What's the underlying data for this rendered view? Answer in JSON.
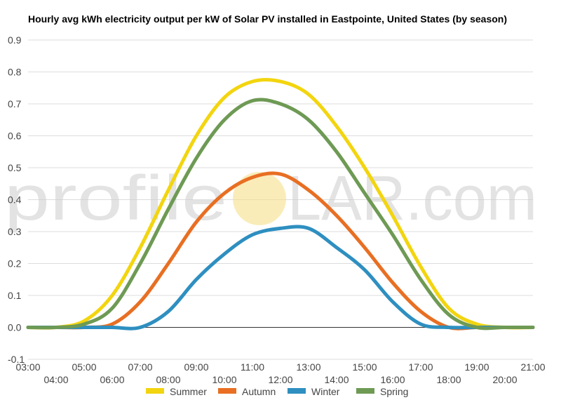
{
  "chart_data": {
    "type": "line",
    "title": "Hourly avg kWh electricity output per kW of Solar PV installed in Eastpointe, United States (by season)",
    "xlabel": "",
    "ylabel": "",
    "ylim": [
      -0.1,
      0.9
    ],
    "yticks": [
      "-0.1",
      "0.0",
      "0.1",
      "0.2",
      "0.3",
      "0.4",
      "0.5",
      "0.6",
      "0.7",
      "0.8",
      "0.9"
    ],
    "xlim": [
      3,
      21
    ],
    "x_tick_labels": [
      "03:00",
      "04:00",
      "05:00",
      "06:00",
      "07:00",
      "08:00",
      "09:00",
      "10:00",
      "11:00",
      "12:00",
      "13:00",
      "14:00",
      "15:00",
      "16:00",
      "17:00",
      "18:00",
      "19:00",
      "20:00",
      "21:00"
    ],
    "grid": true,
    "legend_position": "bottom",
    "x": [
      3,
      4,
      5,
      6,
      7,
      8,
      9,
      10,
      11,
      12,
      13,
      14,
      15,
      16,
      17,
      18,
      19,
      20,
      21
    ],
    "series": [
      {
        "name": "Summer",
        "color": "#f2d50f",
        "values": [
          0.0,
          0.0,
          0.02,
          0.1,
          0.25,
          0.43,
          0.6,
          0.72,
          0.77,
          0.77,
          0.73,
          0.63,
          0.5,
          0.35,
          0.19,
          0.06,
          0.01,
          0.0,
          0.0
        ]
      },
      {
        "name": "Autumn",
        "color": "#e86f23",
        "values": [
          0.0,
          0.0,
          0.0,
          0.01,
          0.08,
          0.2,
          0.33,
          0.42,
          0.47,
          0.48,
          0.43,
          0.35,
          0.25,
          0.14,
          0.05,
          0.0,
          0.0,
          0.0,
          0.0
        ]
      },
      {
        "name": "Winter",
        "color": "#2e8fc0",
        "values": [
          0.0,
          0.0,
          0.0,
          0.0,
          0.0,
          0.05,
          0.15,
          0.23,
          0.29,
          0.31,
          0.31,
          0.25,
          0.18,
          0.08,
          0.01,
          0.0,
          0.0,
          0.0,
          0.0
        ]
      },
      {
        "name": "Spring",
        "color": "#6e9a54",
        "values": [
          0.0,
          0.0,
          0.01,
          0.06,
          0.2,
          0.37,
          0.53,
          0.65,
          0.71,
          0.7,
          0.65,
          0.55,
          0.42,
          0.29,
          0.15,
          0.04,
          0.0,
          0.0,
          0.0
        ]
      }
    ]
  },
  "watermark": {
    "left": "profile",
    "right": "LAR.com",
    "sun_color": "#f7e08a"
  }
}
